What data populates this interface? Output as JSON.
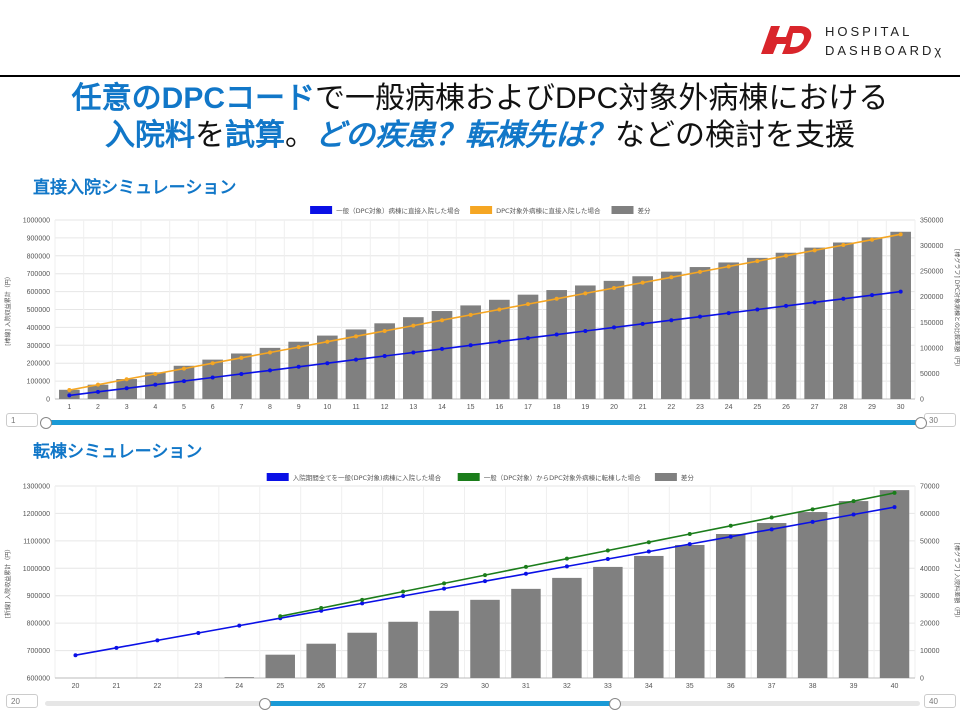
{
  "logo": {
    "line1": "HOSPITAL",
    "line2": "DASHBOARDχ"
  },
  "headline": {
    "line1": [
      {
        "text": "任意のDPCコード",
        "style": "hl"
      },
      {
        "text": "で一般病棟およびDPC対象外病棟における",
        "style": ""
      }
    ],
    "line2": [
      {
        "text": "入院料",
        "style": "hl"
      },
      {
        "text": "を",
        "style": ""
      },
      {
        "text": "試算",
        "style": "hl"
      },
      {
        "text": "。",
        "style": ""
      },
      {
        "text": "どの疾患？転棟先は？",
        "style": "hl2"
      },
      {
        "text": "などの検討を支援",
        "style": ""
      }
    ]
  },
  "sections": {
    "direct": "直接入院シミュレーション",
    "transfer": "転棟シミュレーション"
  },
  "colors": {
    "accent": "#1177c8",
    "blue": "#0a10e6",
    "orange": "#f5a623",
    "green": "#1b7d1b",
    "gray": "#808080",
    "slider": "#1a9ad6"
  },
  "chart_data": [
    {
      "type": "bar+line",
      "x": [
        1,
        2,
        3,
        4,
        5,
        6,
        7,
        8,
        9,
        10,
        11,
        12,
        13,
        14,
        15,
        16,
        17,
        18,
        19,
        20,
        21,
        22,
        23,
        24,
        25,
        26,
        27,
        28,
        29,
        30
      ],
      "bars": {
        "name": "差分",
        "axis": "right",
        "values": [
          18000,
          28000,
          39000,
          52000,
          65000,
          77000,
          89000,
          100000,
          112000,
          124000,
          136000,
          148000,
          160000,
          172000,
          183000,
          194000,
          204000,
          213000,
          222000,
          231000,
          240000,
          249000,
          258000,
          267000,
          276000,
          286000,
          296000,
          306000,
          316000,
          327000
        ]
      },
      "series": [
        {
          "name": "一般（DPC対象）病棟に直接入院した場合",
          "axis": "left",
          "color": "blue",
          "values": [
            20000,
            40000,
            60000,
            80000,
            100000,
            120000,
            140000,
            160000,
            180000,
            200000,
            220000,
            240000,
            260000,
            280000,
            300000,
            320000,
            340000,
            360000,
            380000,
            400000,
            420000,
            440000,
            460000,
            480000,
            500000,
            520000,
            540000,
            560000,
            580000,
            600000
          ]
        },
        {
          "name": "DPC対象外病棟に直接入院した場合",
          "axis": "left",
          "color": "orange",
          "values": [
            50000,
            80000,
            110000,
            140000,
            170000,
            200000,
            230000,
            260000,
            290000,
            320000,
            350000,
            380000,
            410000,
            440000,
            470000,
            500000,
            530000,
            560000,
            590000,
            620000,
            650000,
            680000,
            710000,
            740000,
            770000,
            800000,
            830000,
            860000,
            890000,
            920000
          ]
        }
      ],
      "ylim_left": [
        0,
        1000000
      ],
      "yticks_left": [
        0,
        100000,
        200000,
        300000,
        400000,
        500000,
        600000,
        700000,
        800000,
        900000,
        1000000
      ],
      "ylim_right": [
        0,
        350000
      ],
      "yticks_right": [
        0,
        50000,
        100000,
        150000,
        200000,
        250000,
        300000,
        350000
      ],
      "ylabel_left": "[棒線] 入院収益累計（円）",
      "ylabel_right": "[棒グラフ] DPC対象病棟との比較差額（円）",
      "slider": {
        "min": "1",
        "max": "30",
        "from": 1,
        "to": 30
      }
    },
    {
      "type": "bar+line",
      "x": [
        20,
        21,
        22,
        23,
        24,
        25,
        26,
        27,
        28,
        29,
        30,
        31,
        32,
        33,
        34,
        35,
        36,
        37,
        38,
        39,
        40
      ],
      "bars": {
        "name": "差分",
        "axis": "right",
        "values": [
          0,
          0,
          0,
          0,
          300,
          8500,
          12500,
          16500,
          20500,
          24500,
          28500,
          32500,
          36500,
          40500,
          44500,
          48500,
          52500,
          56500,
          60500,
          64500,
          68500
        ]
      },
      "series": [
        {
          "name": "入院期間全てを一般(DPC対象)病棟に入院した場合",
          "axis": "left",
          "color": "blue",
          "values": [
            683000,
            710000,
            737000,
            764000,
            791000,
            818000,
            845000,
            872000,
            899000,
            926000,
            953000,
            980000,
            1007000,
            1034000,
            1061000,
            1088000,
            1115000,
            1142000,
            1169000,
            1196000,
            1223000
          ]
        },
        {
          "name": "一般（DPC対象）からDPC対象外病棟に転棟した場合",
          "axis": "left",
          "color": "green",
          "values": [
            null,
            null,
            null,
            null,
            null,
            825000,
            855000,
            885000,
            915000,
            945000,
            975000,
            1005000,
            1035000,
            1065000,
            1095000,
            1125000,
            1155000,
            1185000,
            1215000,
            1245000,
            1275000
          ]
        }
      ],
      "ylim_left": [
        600000,
        1300000
      ],
      "yticks_left": [
        600000,
        700000,
        800000,
        900000,
        1000000,
        1100000,
        1200000,
        1300000
      ],
      "ylim_right": [
        0,
        70000
      ],
      "yticks_right": [
        0,
        10000,
        20000,
        30000,
        40000,
        50000,
        60000,
        70000
      ],
      "ylabel_left": "[折線] 入院収益累計（円）",
      "ylabel_right": "[棒グラフ] 入院料差額（円）",
      "slider": {
        "min": "20",
        "max": "40",
        "from": 25,
        "to": 33
      }
    }
  ]
}
